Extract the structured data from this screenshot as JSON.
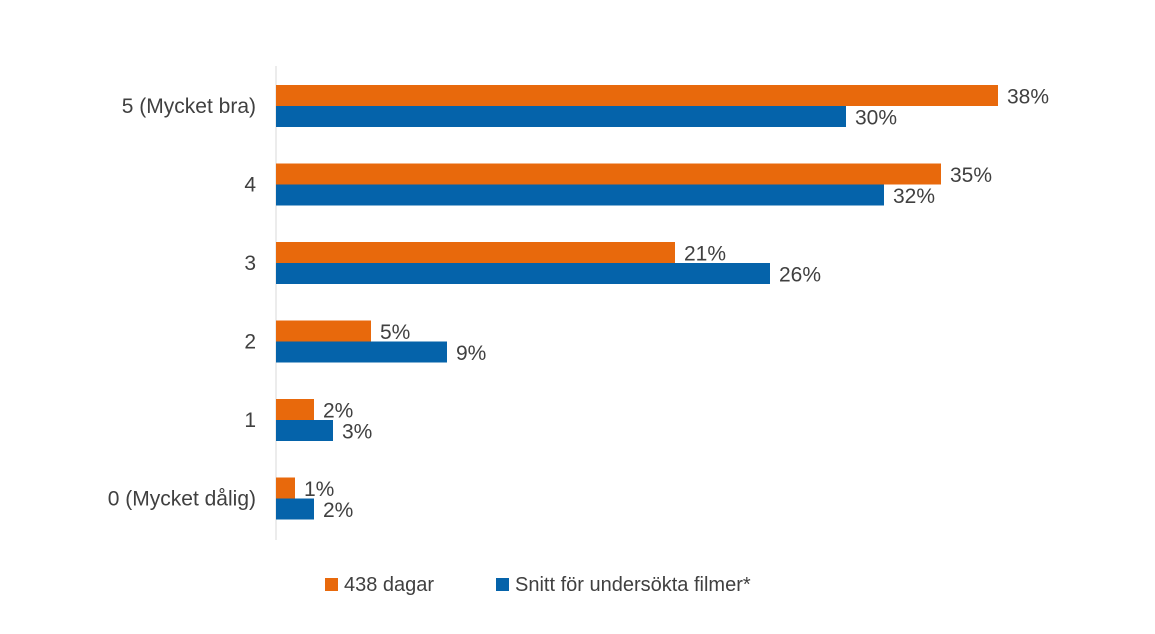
{
  "chart_data": {
    "type": "bar",
    "orientation": "horizontal",
    "categories": [
      "5 (Mycket bra)",
      "4",
      "3",
      "2",
      "1",
      "0 (Mycket dålig)"
    ],
    "series": [
      {
        "name": "438 dagar",
        "color": "#E8690C",
        "values": [
          38,
          35,
          21,
          5,
          2,
          1
        ],
        "labels": [
          "38%",
          "35%",
          "21%",
          "5%",
          "2%",
          "1%"
        ]
      },
      {
        "name": "Snitt för undersökta filmer*",
        "color": "#0563AA",
        "values": [
          30,
          32,
          26,
          9,
          3,
          2
        ],
        "labels": [
          "30%",
          "32%",
          "26%",
          "9%",
          "3%",
          "2%"
        ]
      }
    ],
    "xlim": [
      0,
      38
    ],
    "grid": false,
    "legend_position": "bottom"
  }
}
